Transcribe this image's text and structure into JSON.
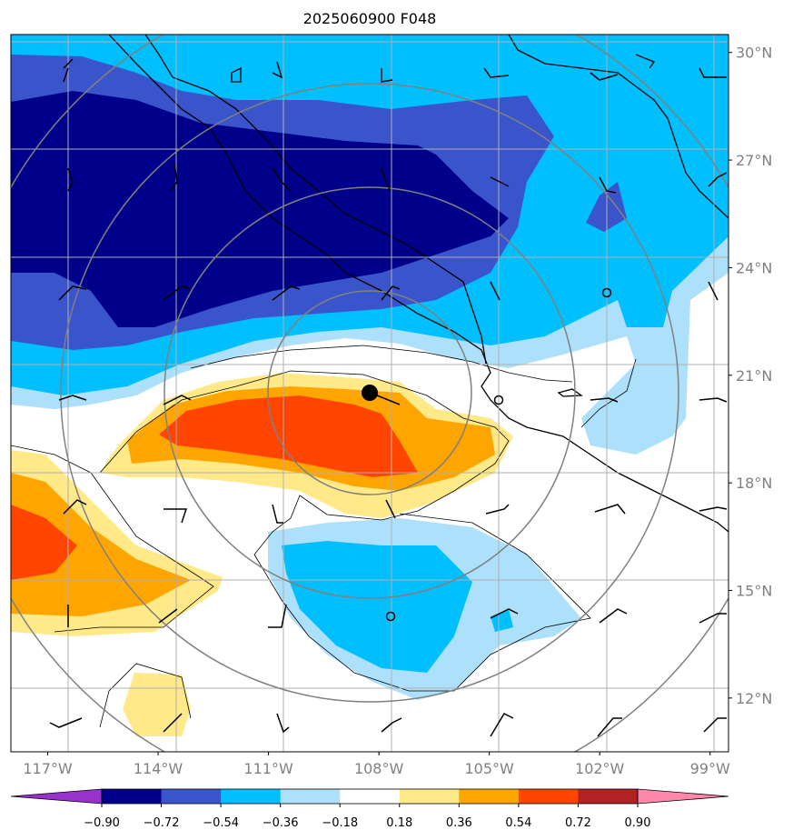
{
  "title": "2025060900 F048",
  "map": {
    "lon_range": [
      -118.0,
      -98.5
    ],
    "lat_range": [
      10.5,
      30.5
    ],
    "x_ticks": [
      "117°W",
      "114°W",
      "111°W",
      "108°W",
      "105°W",
      "102°W",
      "99°W"
    ],
    "x_tick_values": [
      -117,
      -114,
      -111,
      -108,
      -105,
      -102,
      -99
    ],
    "y_ticks": [
      "30°N",
      "27°N",
      "24°N",
      "21°N",
      "18°N",
      "15°N",
      "12°N"
    ],
    "y_tick_values": [
      30,
      27,
      24,
      21,
      18,
      15,
      12
    ],
    "grid": true,
    "storm_center": {
      "lon": -108.6,
      "lat": 20.2,
      "marker": "filled-circle"
    },
    "range_rings_deg": [
      2.5,
      5,
      8,
      11.5
    ],
    "calm_markers": [
      {
        "lon": -102.0,
        "lat": 22.7
      },
      {
        "lon": -105.0,
        "lat": 20.0
      },
      {
        "lon": -108.0,
        "lat": 14.0
      }
    ]
  },
  "colorbar": {
    "levels": [
      "-0.90",
      "-0.72",
      "-0.54",
      "-0.36",
      "-0.18",
      "0.18",
      "0.36",
      "0.54",
      "0.72",
      "0.90"
    ],
    "colors": [
      "#9932CC",
      "#00008B",
      "#3A55CC",
      "#00BFFF",
      "#ADE0FA",
      "#FFFFFF",
      "#FFE989",
      "#FFA500",
      "#FF4500",
      "#B22222",
      "#FF88AA"
    ],
    "extend": "both"
  }
}
